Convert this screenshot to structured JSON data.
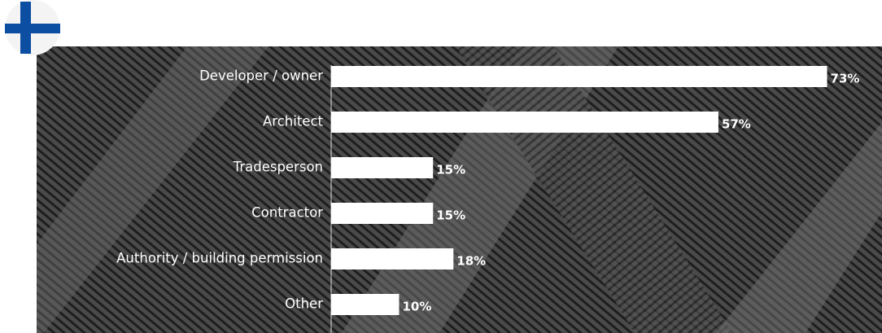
{
  "chart_data": {
    "type": "bar",
    "orientation": "horizontal",
    "categories": [
      "Developer / owner",
      "Architect",
      "Tradesperson",
      "Contractor",
      "Authority / building permission",
      "Other"
    ],
    "values": [
      73,
      57,
      15,
      15,
      18,
      10
    ],
    "value_labels": [
      "73%",
      "57%",
      "15%",
      "15%",
      "18%",
      "10%"
    ],
    "color": "#ffffff"
  }
}
